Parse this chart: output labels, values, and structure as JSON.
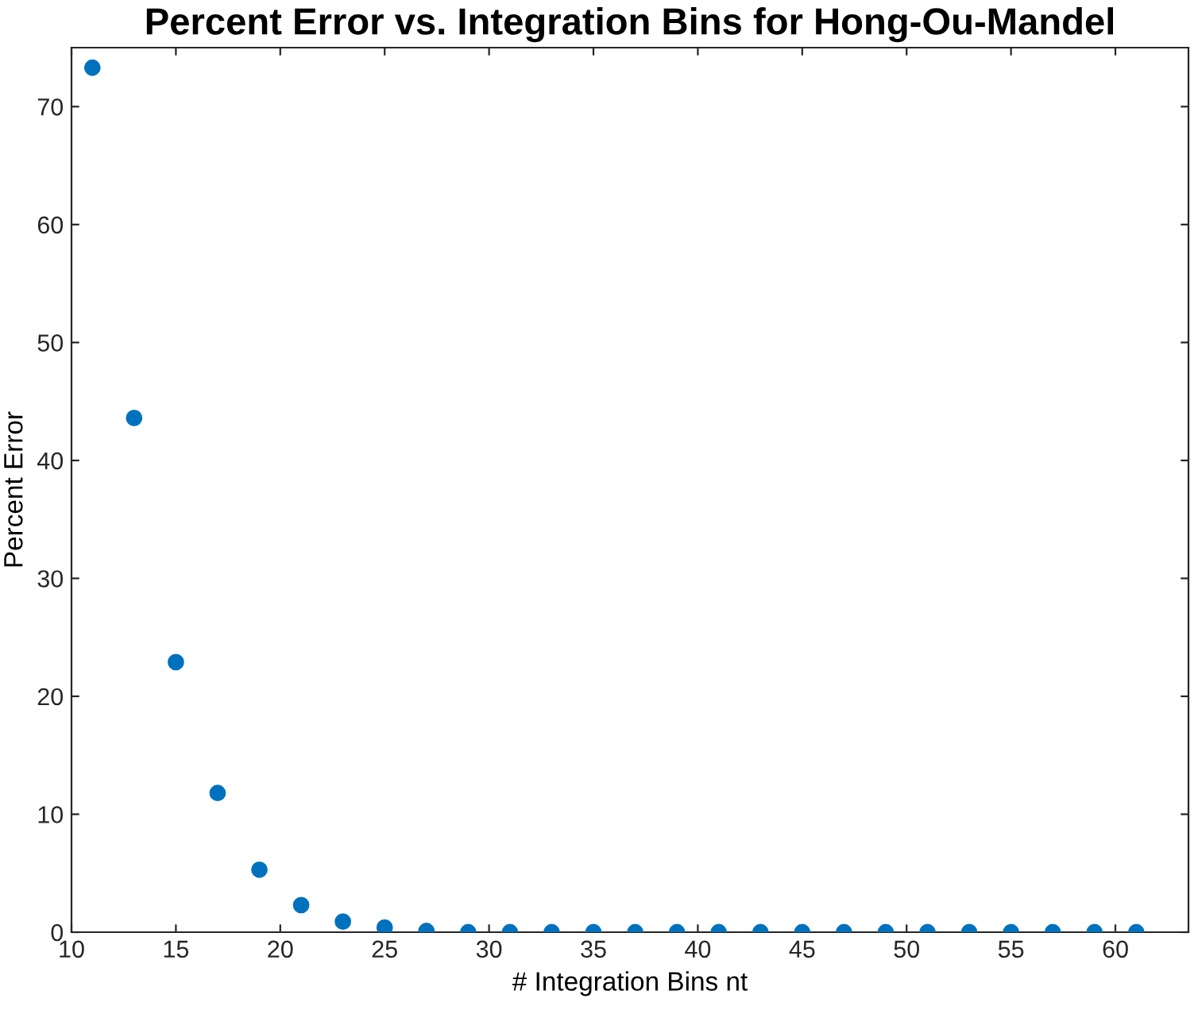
{
  "chart_data": {
    "type": "scatter",
    "title": "Percent Error vs. Integration Bins for Hong-Ou-Mandel",
    "xlabel": "# Integration Bins nt",
    "ylabel": "Percent Error",
    "x": [
      11,
      13,
      15,
      17,
      19,
      21,
      23,
      25,
      27,
      29,
      31,
      33,
      35,
      37,
      39,
      41,
      43,
      45,
      47,
      49,
      51,
      53,
      55,
      57,
      59,
      61
    ],
    "series": [
      {
        "color": "#0072bd",
        "values": [
          73.3,
          43.6,
          22.9,
          11.8,
          5.3,
          2.3,
          0.9,
          0.4,
          0.1,
          0,
          0,
          0,
          0,
          0,
          0,
          0,
          0,
          0,
          0,
          0,
          0,
          0,
          0,
          0,
          0,
          0
        ]
      }
    ],
    "xlim": [
      10,
      63.5
    ],
    "ylim": [
      0,
      75
    ],
    "xticks": [
      10,
      15,
      20,
      25,
      30,
      35,
      40,
      45,
      50,
      55,
      60
    ],
    "yticks": [
      0,
      10,
      20,
      30,
      40,
      50,
      60,
      70
    ],
    "marker": "circle",
    "grid": false,
    "legend": false
  }
}
